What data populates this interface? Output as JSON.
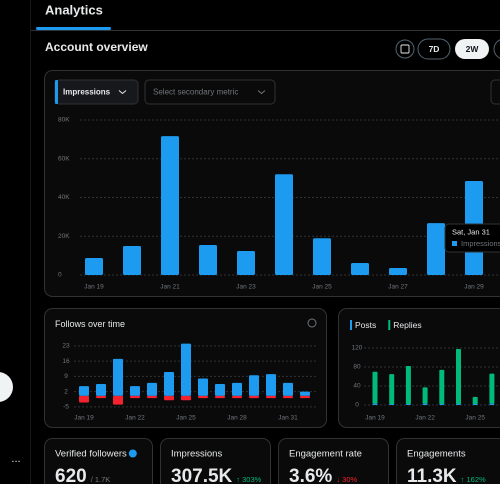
{
  "nav": {
    "tab": "Analytics",
    "more": "..."
  },
  "overview": {
    "title": "Account overview",
    "ranges": [
      "7D",
      "2W"
    ]
  },
  "main_chart": {
    "type": "bar",
    "metric": "Impressions",
    "secondary_metric": "Select secondary metric",
    "color": "#1d9bf0",
    "categories": [
      "Jan 19",
      null,
      "Jan 21",
      null,
      "Jan 23",
      null,
      "Jan 25",
      null,
      "Jan 27",
      null,
      "Jan 29"
    ],
    "values": [
      8800,
      15000,
      71700,
      15500,
      12400,
      52000,
      19000,
      6200,
      3600,
      26800,
      48500
    ],
    "ylim": [
      0,
      80000
    ],
    "yticks": [
      0,
      {
        "value": 20000,
        "label": "20K"
      },
      {
        "value": 40000,
        "label": "40K"
      },
      {
        "value": 60000,
        "label": "60K"
      },
      {
        "value": 80000,
        "label": "80K"
      }
    ],
    "grid": true,
    "tooltip": {
      "date": "Sat, Jan 31",
      "series": "Impressions"
    }
  },
  "follows_chart": {
    "type": "bar",
    "title": "Follows over time",
    "categories": [
      "Jan 19",
      null,
      null,
      "Jan 22",
      null,
      null,
      "Jan 25",
      null,
      null,
      "Jan 28",
      null,
      null,
      "Jan 31",
      null
    ],
    "series": [
      {
        "color": "#1d9bf0",
        "values": [
          4.5,
          5.5,
          17,
          4.5,
          6,
          11,
          24,
          8,
          5.5,
          6,
          9.5,
          10,
          6,
          2
        ]
      },
      {
        "color": "#f4212e",
        "values": [
          -3,
          -1,
          -4,
          -1,
          -1,
          -2,
          -2,
          -1,
          -1,
          -1,
          -1,
          -1,
          -1,
          -1
        ]
      }
    ],
    "ylim": [
      -6,
      25
    ],
    "yticks": [
      -5,
      2,
      9,
      16,
      23
    ],
    "grid": true
  },
  "posts_chart": {
    "type": "bar",
    "categories": [
      "Jan 19",
      null,
      null,
      "Jan 22",
      null,
      null,
      "Jan 25",
      null
    ],
    "series": [
      {
        "name": "Posts",
        "color": "#1d9bf0",
        "values": [
          3,
          2,
          2,
          3,
          2,
          2,
          2,
          3
        ]
      },
      {
        "name": "Replies",
        "color": "#00ba7c",
        "values": [
          67,
          63,
          80,
          34,
          72,
          116,
          15,
          63
        ]
      }
    ],
    "ylim": [
      0,
      130
    ],
    "yticks": [
      0,
      40,
      80,
      120
    ],
    "grid": true
  },
  "cards": [
    {
      "label": "Verified followers",
      "value": "620",
      "total": "/ 1.7K"
    },
    {
      "label": "Impressions",
      "value": "307.5K",
      "change": "↑ 303%",
      "change_color": "#00ba7c"
    },
    {
      "label": "Engagement rate",
      "value": "3.6%",
      "change": "↓ 30%",
      "change_color": "#f4212e"
    },
    {
      "label": "Engagements",
      "value": "11.3K",
      "change": "↑ 162%",
      "change_color": "#00ba7c"
    }
  ]
}
